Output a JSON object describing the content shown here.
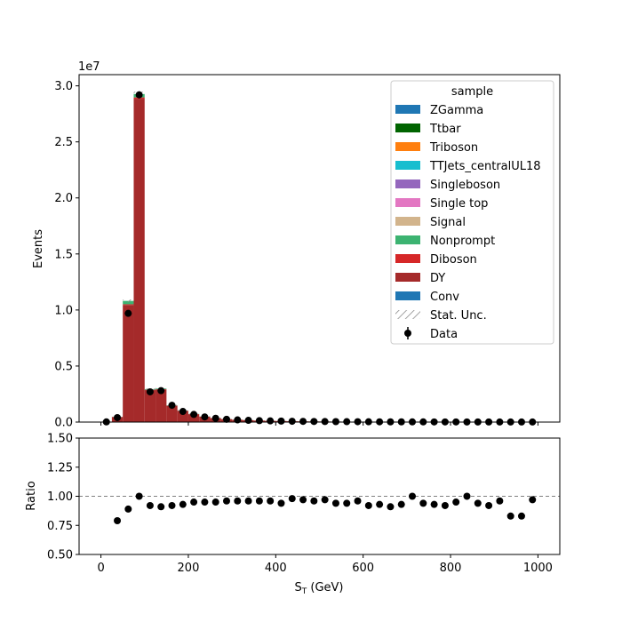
{
  "chart_data": [
    {
      "type": "bar",
      "stacked": true,
      "ylabel": "Events",
      "offset_text": "1e7",
      "scale": 10000000,
      "xlim": [
        -50,
        1050
      ],
      "ylim": [
        0,
        31000000
      ],
      "xticks": [
        0,
        200,
        400,
        600,
        800,
        1000
      ],
      "yticks": [
        0,
        5000000,
        10000000,
        15000000,
        20000000,
        25000000,
        30000000
      ],
      "ytick_labels": [
        "0.0",
        "0.5",
        "1.0",
        "1.5",
        "2.0",
        "2.5",
        "3.0"
      ],
      "legend": {
        "title": "sample",
        "placement": "upper right",
        "entries": [
          {
            "label": "ZGamma",
            "kind": "patch",
            "color": "#1f77b4"
          },
          {
            "label": "Ttbar",
            "kind": "patch",
            "color": "#006400"
          },
          {
            "label": "Triboson",
            "kind": "patch",
            "color": "#ff7f0e"
          },
          {
            "label": "TTJets_centralUL18",
            "kind": "patch",
            "color": "#17becf"
          },
          {
            "label": "Singleboson",
            "kind": "patch",
            "color": "#9467bd"
          },
          {
            "label": "Single top",
            "kind": "patch",
            "color": "#e377c2"
          },
          {
            "label": "Signal",
            "kind": "patch",
            "color": "#d2b48c"
          },
          {
            "label": "Nonprompt",
            "kind": "patch",
            "color": "#3cb371"
          },
          {
            "label": "Diboson",
            "kind": "patch",
            "color": "#d62728"
          },
          {
            "label": "DY",
            "kind": "patch",
            "color": "#a52a2a"
          },
          {
            "label": "Conv",
            "kind": "patch",
            "color": "#1f77b4"
          },
          {
            "label": "Stat. Unc.",
            "kind": "hatch",
            "color": "#888888"
          },
          {
            "label": "Data",
            "kind": "errorbar",
            "color": "#000000"
          }
        ]
      },
      "bin_edges": [
        0,
        25,
        50,
        75,
        100,
        125,
        150,
        175,
        200,
        225,
        250,
        275,
        300,
        325,
        350,
        375,
        400,
        425,
        450,
        475,
        500,
        525,
        550,
        575,
        600,
        625,
        650,
        675,
        700,
        725,
        750,
        775,
        800,
        825,
        850,
        875,
        900,
        925,
        950,
        975,
        1000
      ],
      "mc_series": [
        {
          "name": "DY",
          "color": "#a52a2a",
          "values": [
            20000,
            450000,
            10450000,
            28850000,
            2850000,
            2900000,
            1450000,
            1000000,
            700000,
            480000,
            350000,
            260000,
            200000,
            160000,
            130000,
            110000,
            90000,
            75000,
            65000,
            55000,
            48000,
            42000,
            36000,
            32000,
            28000,
            25000,
            22000,
            20000,
            18000,
            16000,
            14000,
            13000,
            12000,
            11000,
            10000,
            9000,
            8500,
            8000,
            7500,
            7000
          ]
        },
        {
          "name": "Diboson",
          "color": "#d62728",
          "values": [
            0,
            5000,
            60000,
            120000,
            30000,
            30000,
            20000,
            15000,
            12000,
            10000,
            8000,
            7000,
            6000,
            5000,
            4500,
            4000,
            3500,
            3000,
            2700,
            2500,
            2200,
            2000,
            1800,
            1700,
            1600,
            1500,
            1400,
            1300,
            1200,
            1100,
            1000,
            950,
            900,
            850,
            800,
            750,
            700,
            650,
            600,
            550
          ]
        },
        {
          "name": "Nonprompt",
          "color": "#3cb371",
          "values": [
            0,
            10000,
            300000,
            300000,
            60000,
            60000,
            30000,
            20000,
            15000,
            12000,
            10000,
            8000,
            7000,
            6000,
            5000,
            4500,
            4000,
            3500,
            3000,
            2700,
            2500,
            2200,
            2000,
            1800,
            1700,
            1600,
            1500,
            1400,
            1300,
            1200,
            1100,
            1000,
            950,
            900,
            850,
            800,
            750,
            700,
            650,
            600
          ]
        }
      ],
      "data": {
        "name": "Data",
        "x": [
          12.5,
          37.5,
          62.5,
          87.5,
          112.5,
          137.5,
          162.5,
          187.5,
          212.5,
          237.5,
          262.5,
          287.5,
          312.5,
          337.5,
          362.5,
          387.5,
          412.5,
          437.5,
          462.5,
          487.5,
          512.5,
          537.5,
          562.5,
          587.5,
          612.5,
          637.5,
          662.5,
          687.5,
          712.5,
          737.5,
          762.5,
          787.5,
          812.5,
          837.5,
          862.5,
          887.5,
          912.5,
          937.5,
          962.5,
          987.5
        ],
        "values": [
          15000,
          400000,
          9700000,
          29200000,
          2700000,
          2800000,
          1500000,
          950000,
          680000,
          460000,
          340000,
          250000,
          195000,
          155000,
          125000,
          105000,
          88000,
          72000,
          62000,
          53000,
          46000,
          40000,
          35000,
          31000,
          27000,
          24000,
          21000,
          19000,
          17500,
          15500,
          13500,
          12500,
          11500,
          10500,
          9600,
          8700,
          8200,
          7600,
          7100,
          6700
        ]
      },
      "stat_unc": true
    },
    {
      "type": "scatter",
      "xlabel": "S_T (GeV)",
      "xlabel_main": "S",
      "xlabel_sub": "T",
      "xlabel_tail": " (GeV)",
      "ylabel": "Ratio",
      "xlim": [
        -50,
        1050
      ],
      "ylim": [
        0.5,
        1.5
      ],
      "xticks": [
        0,
        200,
        400,
        600,
        800,
        1000
      ],
      "yticks": [
        0.5,
        0.75,
        1.0,
        1.25,
        1.5
      ],
      "ytick_labels": [
        "0.50",
        "0.75",
        "1.00",
        "1.25",
        "1.50"
      ],
      "reference_line": 1.0,
      "x": [
        37.5,
        62.5,
        87.5,
        112.5,
        137.5,
        162.5,
        187.5,
        212.5,
        237.5,
        262.5,
        287.5,
        312.5,
        337.5,
        362.5,
        387.5,
        412.5,
        437.5,
        462.5,
        487.5,
        512.5,
        537.5,
        562.5,
        587.5,
        612.5,
        637.5,
        662.5,
        687.5,
        712.5,
        737.5,
        762.5,
        787.5,
        812.5,
        837.5,
        862.5,
        887.5,
        912.5,
        937.5,
        962.5,
        987.5
      ],
      "y": [
        0.79,
        0.89,
        1.0,
        0.92,
        0.91,
        0.92,
        0.93,
        0.95,
        0.95,
        0.95,
        0.96,
        0.96,
        0.96,
        0.96,
        0.96,
        0.94,
        0.98,
        0.97,
        0.96,
        0.97,
        0.94,
        0.94,
        0.96,
        0.92,
        0.93,
        0.91,
        0.93,
        1.0,
        0.94,
        0.93,
        0.92,
        0.95,
        1.0,
        0.94,
        0.92,
        0.96,
        0.83,
        0.83,
        0.97
      ]
    }
  ]
}
